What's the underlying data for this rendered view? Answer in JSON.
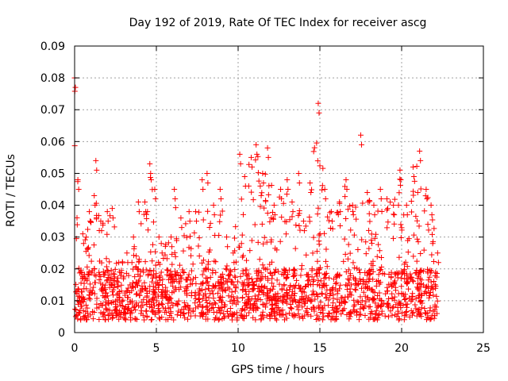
{
  "chart_data": {
    "type": "scatter",
    "title": "Day 192 of 2019, Rate Of TEC Index for receiver ascg",
    "xlabel": "GPS time / hours",
    "ylabel": "ROTI / TECUs",
    "xlim": [
      0,
      25
    ],
    "ylim": [
      0,
      0.09
    ],
    "grid": true,
    "marker": "+",
    "series_color": "#ff0000",
    "x_ticks": [
      {
        "value": 0,
        "label": "0"
      },
      {
        "value": 5,
        "label": "5"
      },
      {
        "value": 10,
        "label": "10"
      },
      {
        "value": 15,
        "label": "15"
      },
      {
        "value": 20,
        "label": "20"
      },
      {
        "value": 25,
        "label": "25"
      }
    ],
    "y_ticks": [
      {
        "value": 0,
        "label": "0"
      },
      {
        "value": 0.01,
        "label": "0.01"
      },
      {
        "value": 0.02,
        "label": "0.02"
      },
      {
        "value": 0.03,
        "label": "0.03"
      },
      {
        "value": 0.04,
        "label": "0.04"
      },
      {
        "value": 0.05,
        "label": "0.05"
      },
      {
        "value": 0.06,
        "label": "0.06"
      },
      {
        "value": 0.07,
        "label": "0.07"
      },
      {
        "value": 0.08,
        "label": "0.08"
      },
      {
        "value": 0.09,
        "label": "0.09"
      }
    ],
    "envelope": [
      [
        0.0,
        0.08
      ],
      [
        0.2,
        0.048
      ],
      [
        0.5,
        0.031
      ],
      [
        0.9,
        0.038
      ],
      [
        1.2,
        0.043
      ],
      [
        1.3,
        0.054
      ],
      [
        1.6,
        0.035
      ],
      [
        2.0,
        0.038
      ],
      [
        2.3,
        0.039
      ],
      [
        2.7,
        0.022
      ],
      [
        3.2,
        0.025
      ],
      [
        3.6,
        0.03
      ],
      [
        3.9,
        0.041
      ],
      [
        4.3,
        0.041
      ],
      [
        4.6,
        0.053
      ],
      [
        4.9,
        0.045
      ],
      [
        5.3,
        0.028
      ],
      [
        5.9,
        0.03
      ],
      [
        6.1,
        0.045
      ],
      [
        6.5,
        0.036
      ],
      [
        7.0,
        0.038
      ],
      [
        7.4,
        0.038
      ],
      [
        7.8,
        0.048
      ],
      [
        8.1,
        0.05
      ],
      [
        8.5,
        0.04
      ],
      [
        8.9,
        0.045
      ],
      [
        9.3,
        0.03
      ],
      [
        9.7,
        0.025
      ],
      [
        10.1,
        0.056
      ],
      [
        10.4,
        0.049
      ],
      [
        10.8,
        0.055
      ],
      [
        11.1,
        0.059
      ],
      [
        11.5,
        0.05
      ],
      [
        11.8,
        0.058
      ],
      [
        12.2,
        0.04
      ],
      [
        12.6,
        0.045
      ],
      [
        13.0,
        0.048
      ],
      [
        13.3,
        0.041
      ],
      [
        13.7,
        0.05
      ],
      [
        14.0,
        0.035
      ],
      [
        14.4,
        0.047
      ],
      [
        14.9,
        0.072
      ],
      [
        15.3,
        0.045
      ],
      [
        15.7,
        0.038
      ],
      [
        16.2,
        0.041
      ],
      [
        16.6,
        0.048
      ],
      [
        17.0,
        0.04
      ],
      [
        17.5,
        0.062
      ],
      [
        17.9,
        0.044
      ],
      [
        18.3,
        0.04
      ],
      [
        18.7,
        0.045
      ],
      [
        19.1,
        0.042
      ],
      [
        19.5,
        0.04
      ],
      [
        19.9,
        0.051
      ],
      [
        20.3,
        0.04
      ],
      [
        20.7,
        0.052
      ],
      [
        21.1,
        0.057
      ],
      [
        21.5,
        0.045
      ],
      [
        21.8,
        0.04
      ],
      [
        22.2,
        0.025
      ]
    ],
    "point_count": 1800,
    "seed": 192
  }
}
